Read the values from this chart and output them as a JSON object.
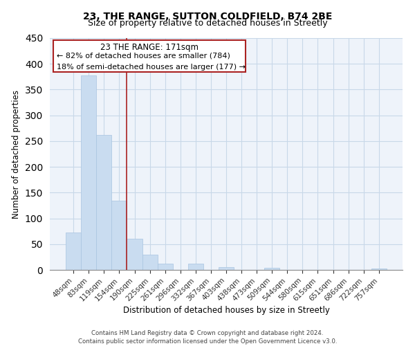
{
  "title": "23, THE RANGE, SUTTON COLDFIELD, B74 2BE",
  "subtitle": "Size of property relative to detached houses in Streetly",
  "xlabel": "Distribution of detached houses by size in Streetly",
  "ylabel": "Number of detached properties",
  "bar_labels": [
    "48sqm",
    "83sqm",
    "119sqm",
    "154sqm",
    "190sqm",
    "225sqm",
    "261sqm",
    "296sqm",
    "332sqm",
    "367sqm",
    "403sqm",
    "438sqm",
    "473sqm",
    "509sqm",
    "544sqm",
    "580sqm",
    "615sqm",
    "651sqm",
    "686sqm",
    "722sqm",
    "757sqm"
  ],
  "bar_values": [
    72,
    378,
    262,
    135,
    60,
    30,
    12,
    0,
    12,
    0,
    5,
    0,
    0,
    4,
    0,
    0,
    0,
    0,
    0,
    0,
    3
  ],
  "bar_color": "#c9dcf0",
  "bar_edge_color": "#a8c4e0",
  "vline_x": 3.5,
  "vline_color": "#aa2222",
  "ylim": [
    0,
    450
  ],
  "yticks": [
    0,
    50,
    100,
    150,
    200,
    250,
    300,
    350,
    400,
    450
  ],
  "annotation_title": "23 THE RANGE: 171sqm",
  "annotation_line1": "← 82% of detached houses are smaller (784)",
  "annotation_line2": "18% of semi-detached houses are larger (177) →",
  "footer_line1": "Contains HM Land Registry data © Crown copyright and database right 2024.",
  "footer_line2": "Contains public sector information licensed under the Open Government Licence v3.0.",
  "background_color": "#ffffff",
  "plot_background_color": "#eef3fa"
}
